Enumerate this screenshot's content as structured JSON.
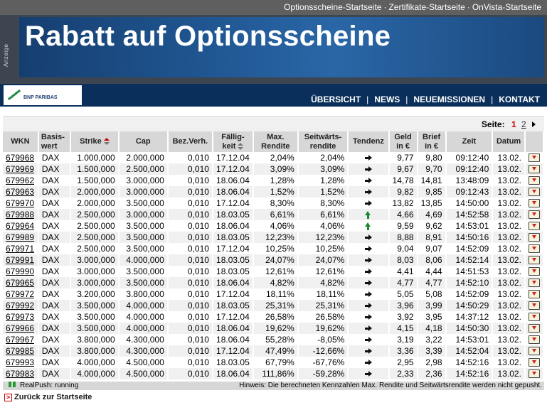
{
  "top_links": [
    "Optionsscheine-Startseite",
    "Zertifikate-Startseite",
    "OnVista-Startseite"
  ],
  "top_sep": "·",
  "banner": {
    "ad_label": "Anzeige",
    "title": "Rabatt auf Optionsscheine"
  },
  "logo_text": "BNP PARIBAS",
  "nav": [
    "ÜBERSICHT",
    "NEWS",
    "NEUEMISSIONEN",
    "KONTAKT"
  ],
  "nav_sep": "|",
  "pager": {
    "label": "Seite:",
    "current": "1",
    "other": "2"
  },
  "columns": [
    "WKN",
    "Basis-wert",
    "Strike",
    "Cap",
    "Bez.Verh.",
    "Fällig-keit",
    "Max. Rendite",
    "Seitwärts-rendite",
    "Tendenz",
    "Geld in €",
    "Brief in €",
    "Zeit",
    "Datum"
  ],
  "rows": [
    {
      "wkn": "679968",
      "basis": "DAX",
      "strike": "1.000,000",
      "cap": "2.000,000",
      "bez": "0,010",
      "faellig": "17.12.04",
      "maxr": "2,04%",
      "seit": "2,04%",
      "tend": "right",
      "geld": "9,77",
      "brief": "9,80",
      "zeit": "09:12:40",
      "datum": "13.02."
    },
    {
      "wkn": "679969",
      "basis": "DAX",
      "strike": "1.500,000",
      "cap": "2.500,000",
      "bez": "0,010",
      "faellig": "17.12.04",
      "maxr": "3,09%",
      "seit": "3,09%",
      "tend": "right",
      "geld": "9,67",
      "brief": "9,70",
      "zeit": "09:12:40",
      "datum": "13.02."
    },
    {
      "wkn": "679962",
      "basis": "DAX",
      "strike": "1.500,000",
      "cap": "3.000,000",
      "bez": "0,010",
      "faellig": "18.06.04",
      "maxr": "1,28%",
      "seit": "1,28%",
      "tend": "right",
      "geld": "14,78",
      "brief": "14,81",
      "zeit": "13:48:09",
      "datum": "13.02."
    },
    {
      "wkn": "679963",
      "basis": "DAX",
      "strike": "2.000,000",
      "cap": "3.000,000",
      "bez": "0,010",
      "faellig": "18.06.04",
      "maxr": "1,52%",
      "seit": "1,52%",
      "tend": "right",
      "geld": "9,82",
      "brief": "9,85",
      "zeit": "09:12:43",
      "datum": "13.02."
    },
    {
      "wkn": "679970",
      "basis": "DAX",
      "strike": "2.000,000",
      "cap": "3.500,000",
      "bez": "0,010",
      "faellig": "17.12.04",
      "maxr": "8,30%",
      "seit": "8,30%",
      "tend": "right",
      "geld": "13,82",
      "brief": "13,85",
      "zeit": "14:50:00",
      "datum": "13.02."
    },
    {
      "wkn": "679988",
      "basis": "DAX",
      "strike": "2.500,000",
      "cap": "3.000,000",
      "bez": "0,010",
      "faellig": "18.03.05",
      "maxr": "6,61%",
      "seit": "6,61%",
      "tend": "up",
      "geld": "4,66",
      "brief": "4,69",
      "zeit": "14:52:58",
      "datum": "13.02."
    },
    {
      "wkn": "679964",
      "basis": "DAX",
      "strike": "2.500,000",
      "cap": "3.500,000",
      "bez": "0,010",
      "faellig": "18.06.04",
      "maxr": "4,06%",
      "seit": "4,06%",
      "tend": "up",
      "geld": "9,59",
      "brief": "9,62",
      "zeit": "14:53:01",
      "datum": "13.02."
    },
    {
      "wkn": "679989",
      "basis": "DAX",
      "strike": "2.500,000",
      "cap": "3.500,000",
      "bez": "0,010",
      "faellig": "18.03.05",
      "maxr": "12,23%",
      "seit": "12,23%",
      "tend": "right",
      "geld": "8,88",
      "brief": "8,91",
      "zeit": "14:50:16",
      "datum": "13.02."
    },
    {
      "wkn": "679971",
      "basis": "DAX",
      "strike": "2.500,000",
      "cap": "3.500,000",
      "bez": "0,010",
      "faellig": "17.12.04",
      "maxr": "10,25%",
      "seit": "10,25%",
      "tend": "right",
      "geld": "9,04",
      "brief": "9,07",
      "zeit": "14:52:09",
      "datum": "13.02."
    },
    {
      "wkn": "679991",
      "basis": "DAX",
      "strike": "3.000,000",
      "cap": "4.000,000",
      "bez": "0,010",
      "faellig": "18.03.05",
      "maxr": "24,07%",
      "seit": "24,07%",
      "tend": "right",
      "geld": "8,03",
      "brief": "8,06",
      "zeit": "14:52:14",
      "datum": "13.02."
    },
    {
      "wkn": "679990",
      "basis": "DAX",
      "strike": "3.000,000",
      "cap": "3.500,000",
      "bez": "0,010",
      "faellig": "18.03.05",
      "maxr": "12,61%",
      "seit": "12,61%",
      "tend": "right",
      "geld": "4,41",
      "brief": "4,44",
      "zeit": "14:51:53",
      "datum": "13.02."
    },
    {
      "wkn": "679965",
      "basis": "DAX",
      "strike": "3.000,000",
      "cap": "3.500,000",
      "bez": "0,010",
      "faellig": "18.06.04",
      "maxr": "4,82%",
      "seit": "4,82%",
      "tend": "right",
      "geld": "4,77",
      "brief": "4,77",
      "zeit": "14:52:10",
      "datum": "13.02."
    },
    {
      "wkn": "679972",
      "basis": "DAX",
      "strike": "3.200,000",
      "cap": "3.800,000",
      "bez": "0,010",
      "faellig": "17.12.04",
      "maxr": "18,11%",
      "seit": "18,11%",
      "tend": "right",
      "geld": "5,05",
      "brief": "5,08",
      "zeit": "14:52:09",
      "datum": "13.02."
    },
    {
      "wkn": "679992",
      "basis": "DAX",
      "strike": "3.500,000",
      "cap": "4.000,000",
      "bez": "0,010",
      "faellig": "18.03.05",
      "maxr": "25,31%",
      "seit": "25,31%",
      "tend": "right",
      "geld": "3,96",
      "brief": "3,99",
      "zeit": "14:50:29",
      "datum": "13.02."
    },
    {
      "wkn": "679973",
      "basis": "DAX",
      "strike": "3.500,000",
      "cap": "4.000,000",
      "bez": "0,010",
      "faellig": "17.12.04",
      "maxr": "26,58%",
      "seit": "26,58%",
      "tend": "right",
      "geld": "3,92",
      "brief": "3,95",
      "zeit": "14:37:12",
      "datum": "13.02."
    },
    {
      "wkn": "679966",
      "basis": "DAX",
      "strike": "3.500,000",
      "cap": "4.000,000",
      "bez": "0,010",
      "faellig": "18.06.04",
      "maxr": "19,62%",
      "seit": "19,62%",
      "tend": "right",
      "geld": "4,15",
      "brief": "4,18",
      "zeit": "14:50:30",
      "datum": "13.02."
    },
    {
      "wkn": "679967",
      "basis": "DAX",
      "strike": "3.800,000",
      "cap": "4.300,000",
      "bez": "0,010",
      "faellig": "18.06.04",
      "maxr": "55,28%",
      "seit": "-8,05%",
      "tend": "right",
      "geld": "3,19",
      "brief": "3,22",
      "zeit": "14:53:01",
      "datum": "13.02."
    },
    {
      "wkn": "679985",
      "basis": "DAX",
      "strike": "3.800,000",
      "cap": "4.300,000",
      "bez": "0,010",
      "faellig": "17.12.04",
      "maxr": "47,49%",
      "seit": "-12,66%",
      "tend": "right",
      "geld": "3,36",
      "brief": "3,39",
      "zeit": "14:52:04",
      "datum": "13.02."
    },
    {
      "wkn": "679993",
      "basis": "DAX",
      "strike": "4.000,000",
      "cap": "4.500,000",
      "bez": "0,010",
      "faellig": "18.03.05",
      "maxr": "67,79%",
      "seit": "-67,76%",
      "tend": "right",
      "geld": "2,95",
      "brief": "2,98",
      "zeit": "14:52:16",
      "datum": "13.02."
    },
    {
      "wkn": "679983",
      "basis": "DAX",
      "strike": "4.000,000",
      "cap": "4.500,000",
      "bez": "0,010",
      "faellig": "18.06.04",
      "maxr": "111,86%",
      "seit": "-59,28%",
      "tend": "right",
      "geld": "2,33",
      "brief": "2,36",
      "zeit": "14:52:16",
      "datum": "13.02."
    }
  ],
  "status": {
    "realpush": "RealPush: running",
    "hint": "Hinweis: Die berechneten Kennzahlen Max. Rendite und Seitwärtsrendite werden nicht gepusht."
  },
  "back_link": "Zurück zur Startseite",
  "colors": {
    "banner": "#1f5691",
    "nav_bg": "#0a2f5a",
    "header_bg": "#d7d7d7",
    "row_alt": "#f0f0f0",
    "accent_red": "#cc0000",
    "trend_up": "#1a8a2e"
  },
  "icons": {
    "trend_right": "arrow-right-icon",
    "trend_up": "arrow-up-icon",
    "detail": "detail-icon"
  }
}
